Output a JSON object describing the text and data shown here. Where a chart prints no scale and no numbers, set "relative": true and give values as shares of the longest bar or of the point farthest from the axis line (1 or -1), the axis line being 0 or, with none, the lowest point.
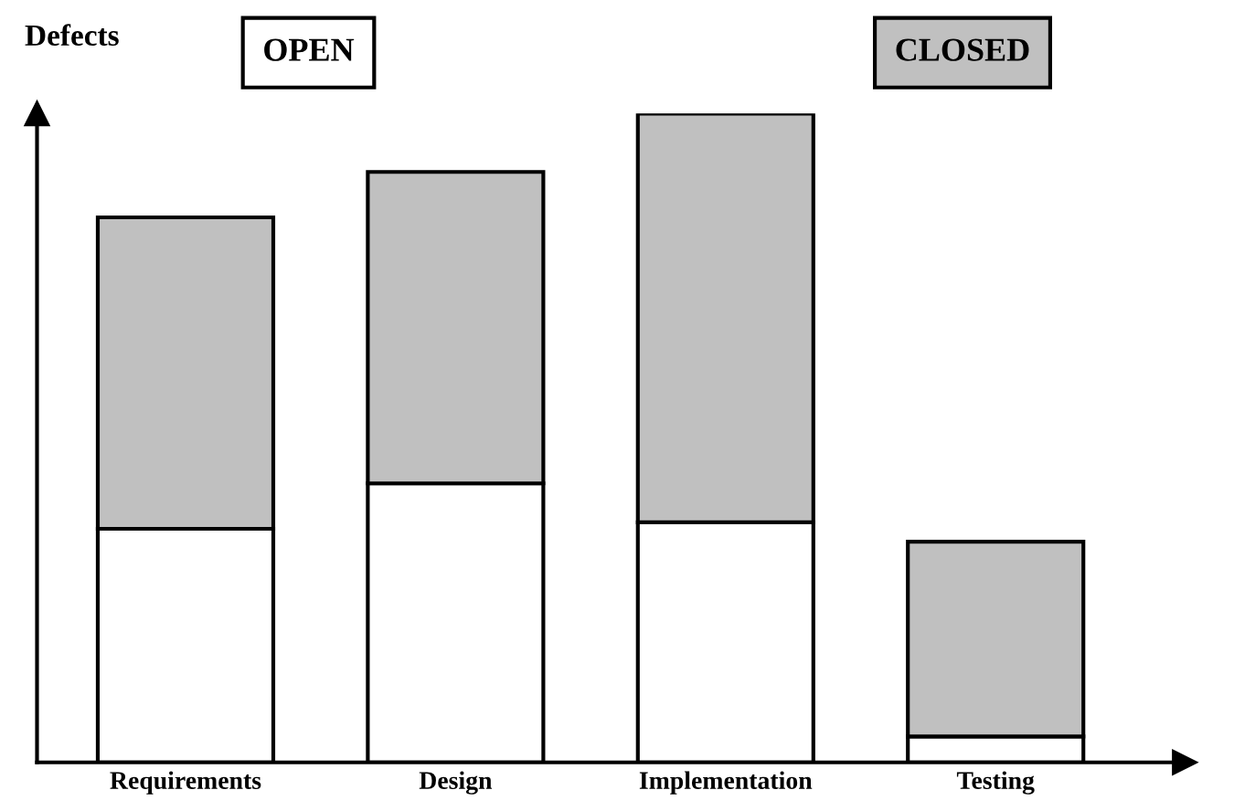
{
  "chart_data": {
    "type": "bar",
    "stacked": true,
    "relative": true,
    "ylabel": "Defects",
    "categories": [
      "Requirements",
      "Design",
      "Implementation",
      "Testing"
    ],
    "series": [
      {
        "name": "OPEN",
        "color": "#ffffff",
        "values": [
          0.36,
          0.43,
          0.37,
          0.04
        ]
      },
      {
        "name": "CLOSED",
        "color": "#c0c0c0",
        "values": [
          0.48,
          0.48,
          0.63,
          0.3
        ]
      }
    ],
    "legend": "top",
    "grid": false
  }
}
